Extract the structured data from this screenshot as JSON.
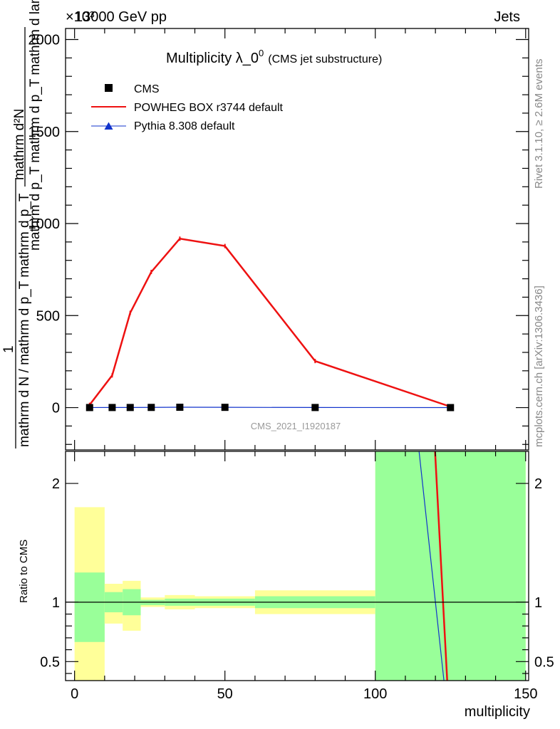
{
  "header": {
    "left": "13000 GeV pp",
    "right": "Jets",
    "exponent": "×10³",
    "watermark": "CMS_2021_I1920187",
    "side_top": "Rivet 3.1.10, ≥ 2.6M events",
    "side_bottom": "mcplots.cern.ch [arXiv:1306.3436]"
  },
  "chart_data": [
    {
      "type": "line",
      "title": "Multiplicity λ_0",
      "title_sup": "0",
      "title_suffix": "(CMS jet substructure)",
      "ylabel_num": "mathrm d²N",
      "ylabel_den": "mathrm d p_T mathrm d p_T mathrm d lambda",
      "ylabel_pre_one": "1",
      "ylabel_pre_den": "mathrm d N / mathrm d p_T mathrm d p_T",
      "xlim": [
        -3,
        151
      ],
      "ylim": [
        -230,
        2060
      ],
      "yticks": [
        0,
        500,
        1000,
        1500,
        2000
      ],
      "ytick_labels": [
        "0",
        "500",
        "1000",
        "1500",
        "2000"
      ],
      "legend": [
        {
          "name": "CMS",
          "color": "#000000",
          "marker": "square"
        },
        {
          "name": "POWHEG BOX r3744 default",
          "color": "#ee1111",
          "marker": "line"
        },
        {
          "name": "Pythia 8.308 default",
          "color": "#1133cc",
          "marker": "triangle"
        }
      ],
      "series": [
        {
          "name": "CMS",
          "x": [
            5,
            12.5,
            18.5,
            25.5,
            35,
            50,
            80,
            125
          ],
          "y": [
            0.3,
            0.5,
            0.6,
            1.0,
            1.8,
            1.4,
            0.5,
            0.05
          ]
        },
        {
          "name": "POWHEG BOX r3744 default",
          "x": [
            5,
            12.5,
            18.5,
            25.5,
            35,
            50,
            80,
            125
          ],
          "y": [
            15,
            175,
            515,
            737,
            918,
            878,
            253,
            5
          ]
        },
        {
          "name": "Pythia 8.308 default",
          "x": [
            5,
            12.5,
            18.5,
            25.5,
            35,
            50,
            80,
            125
          ],
          "y": [
            0.3,
            0.5,
            0.7,
            1.2,
            2.0,
            1.5,
            0.5,
            0.05
          ]
        }
      ]
    },
    {
      "type": "area",
      "ylabel": "Ratio to CMS",
      "xlabel": "multiplicity",
      "xlim": [
        -3,
        151
      ],
      "ylim": [
        0.34,
        2.27
      ],
      "xticks": [
        0,
        50,
        100,
        150
      ],
      "xtick_labels": [
        "0",
        "50",
        "100",
        "150"
      ],
      "yticks": [
        0.5,
        1,
        2
      ],
      "ytick_labels": [
        "0.5",
        "1",
        "2"
      ],
      "bins": [
        {
          "x0": 0,
          "x1": 10,
          "stat_lo": 0.665,
          "stat_hi": 1.25,
          "tot_lo": 0.3,
          "tot_hi": 1.8
        },
        {
          "x0": 10,
          "x1": 16,
          "stat_lo": 0.915,
          "stat_hi": 1.085,
          "tot_lo": 0.82,
          "tot_hi": 1.155
        },
        {
          "x0": 16,
          "x1": 22,
          "stat_lo": 0.89,
          "stat_hi": 1.11,
          "tot_lo": 0.76,
          "tot_hi": 1.18
        },
        {
          "x0": 22,
          "x1": 30,
          "stat_lo": 0.975,
          "stat_hi": 1.02,
          "tot_lo": 0.96,
          "tot_hi": 1.04
        },
        {
          "x0": 30,
          "x1": 40,
          "stat_lo": 0.97,
          "stat_hi": 1.03,
          "tot_lo": 0.94,
          "tot_hi": 1.06
        },
        {
          "x0": 40,
          "x1": 60,
          "stat_lo": 0.97,
          "stat_hi": 1.03,
          "tot_lo": 0.95,
          "tot_hi": 1.05
        },
        {
          "x0": 60,
          "x1": 100,
          "stat_lo": 0.95,
          "stat_hi": 1.05,
          "tot_lo": 0.9,
          "tot_hi": 1.1
        },
        {
          "x0": 100,
          "x1": 150,
          "stat_lo": 0.0,
          "stat_hi": 3.0,
          "tot_lo": 0.0,
          "tot_hi": 3.0
        }
      ],
      "series": [
        {
          "name": "POWHEG BOX r3744 default",
          "x": [
            119.5,
            124
          ],
          "y": [
            2.45,
            0.3
          ]
        },
        {
          "name": "Pythia 8.308 default",
          "x": [
            114,
            123
          ],
          "y": [
            2.4,
            0.3
          ]
        }
      ]
    }
  ],
  "colors": {
    "stat_band": "#99ff99",
    "tot_band": "#ffff99",
    "powheg": "#ee1111",
    "pythia": "#1133cc",
    "cms": "#000000",
    "gray_text": "#888888"
  }
}
